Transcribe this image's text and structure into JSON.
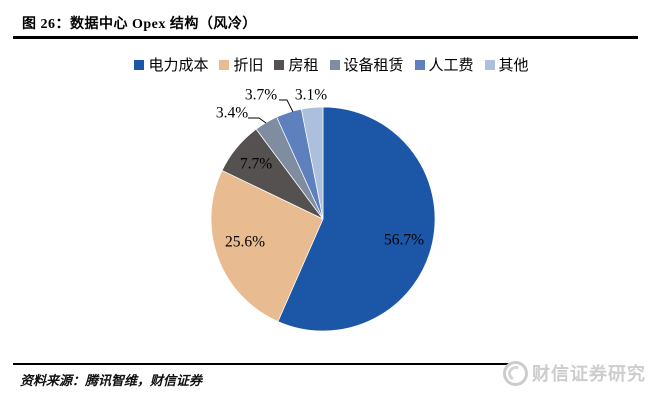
{
  "figure": {
    "title": "图 26：数据中心 Opex 结构（风冷）",
    "source_note": "资料来源：腾讯智维，财信证券",
    "watermark_text": "财信证券研究"
  },
  "chart_data": {
    "type": "pie",
    "title": "数据中心 Opex 结构（风冷）",
    "legend_position": "top",
    "start_angle_deg": 0,
    "direction": "clockwise",
    "slices": [
      {
        "label": "电力成本",
        "value": 56.7,
        "display": "56.7%",
        "color": "#1B56A7",
        "label_placement": "inside"
      },
      {
        "label": "折旧",
        "value": 25.6,
        "display": "25.6%",
        "color": "#E8BB90",
        "label_placement": "inside"
      },
      {
        "label": "房租",
        "value": 7.7,
        "display": "7.7%",
        "color": "#545150",
        "label_placement": "inside"
      },
      {
        "label": "设备租赁",
        "value": 3.4,
        "display": "3.4%",
        "color": "#808DA0",
        "label_placement": "outside"
      },
      {
        "label": "人工费",
        "value": 3.7,
        "display": "3.7%",
        "color": "#5E81BE",
        "label_placement": "outside"
      },
      {
        "label": "其他",
        "value": 3.1,
        "display": "3.1%",
        "color": "#ACC0DD",
        "label_placement": "outside"
      }
    ]
  }
}
